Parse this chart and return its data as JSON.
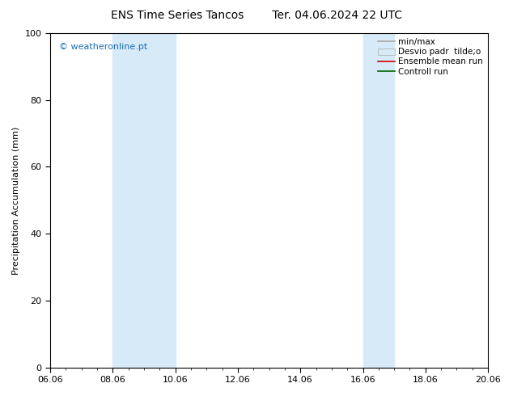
{
  "title": "ENS Time Series Tancos        Ter. 04.06.2024 22 UTC",
  "ylabel": "Precipitation Accumulation (mm)",
  "ylim": [
    0,
    100
  ],
  "xtick_labels": [
    "06.06",
    "08.06",
    "10.06",
    "12.06",
    "14.06",
    "16.06",
    "18.06",
    "20.06"
  ],
  "xtick_positions": [
    0,
    2,
    4,
    6,
    8,
    10,
    12,
    14
  ],
  "xlim": [
    0,
    14
  ],
  "shaded_bands": [
    {
      "x_start": 2,
      "x_end": 4,
      "color": "#d6eaf8"
    },
    {
      "x_start": 10,
      "x_end": 11,
      "color": "#d6eaf8"
    }
  ],
  "watermark": "© weatheronline.pt",
  "watermark_color": "#1a6eb5",
  "legend_entries": [
    {
      "label": "min/max",
      "color": "#aaaaaa",
      "type": "line",
      "lw": 1.2
    },
    {
      "label": "Desvio padr  tilde;o",
      "color": "#d6eaf8",
      "edge_color": "#aaaaaa",
      "type": "patch"
    },
    {
      "label": "Ensemble mean run",
      "color": "#cc0000",
      "type": "line",
      "lw": 1.2
    },
    {
      "label": "Controll run",
      "color": "#006600",
      "type": "line",
      "lw": 1.2
    }
  ],
  "bg_color": "#ffffff",
  "plot_bg_color": "#ffffff",
  "title_fontsize": 10,
  "axis_label_fontsize": 8,
  "tick_fontsize": 8,
  "legend_fontsize": 7.5
}
